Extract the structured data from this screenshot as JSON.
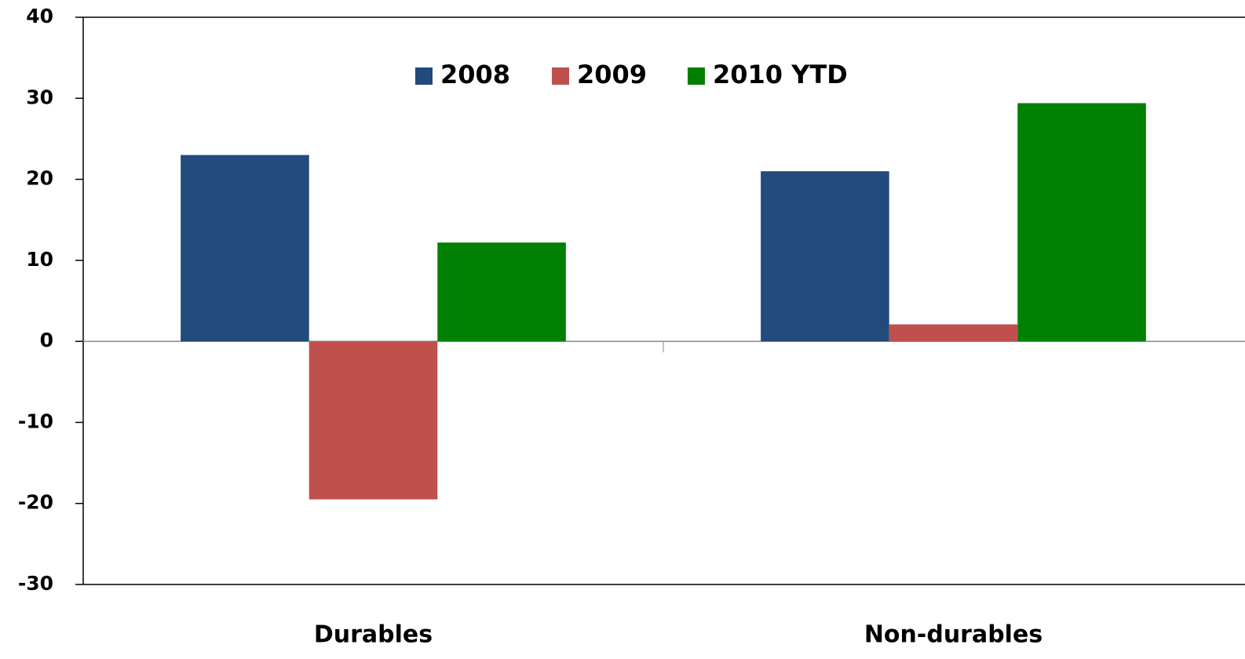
{
  "chart_data": {
    "type": "bar",
    "categories": [
      "Durables",
      "Non-durables"
    ],
    "series": [
      {
        "name": "2008",
        "color": "#224a7c",
        "values": [
          23,
          21
        ]
      },
      {
        "name": "2009",
        "color": "#c0504d",
        "values": [
          -19.5,
          2.1
        ]
      },
      {
        "name": "2010 YTD",
        "color": "#008000",
        "values": [
          12.2,
          29.4
        ]
      }
    ],
    "ylim": [
      -30,
      40
    ],
    "yticks": [
      -30,
      -20,
      -10,
      0,
      10,
      20,
      30,
      40
    ],
    "grid": false,
    "legend": "top"
  }
}
